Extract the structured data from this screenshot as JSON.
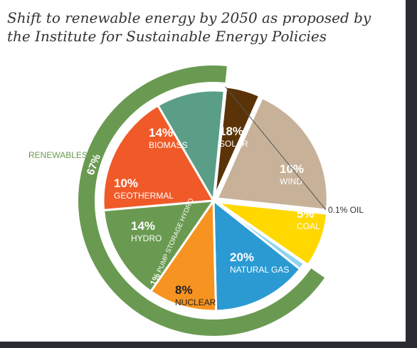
{
  "title": "Shift to renewable energy by 2050 as proposed by the Institute for Sustainable Energy Policies",
  "colors": {
    "frame": "#2b2b33",
    "renewables_ring": "#6a9a51",
    "renewables_label": "#6a9a51"
  },
  "chart_data": {
    "type": "pie",
    "title": "Shift to renewable energy by 2050 as proposed by the Institute for Sustainable Energy Policies",
    "slices": [
      {
        "label": "SOLAR",
        "percent": "18%",
        "value": 18,
        "color": "#f05a28",
        "group": "renewables"
      },
      {
        "label": "WIND",
        "percent": "10%",
        "value": 10,
        "color": "#5a9e87",
        "group": "renewables"
      },
      {
        "label": "OIL",
        "percent": "0.1%",
        "value": 0.1,
        "color": "#333333",
        "group": "other"
      },
      {
        "label": "COAL",
        "percent": "5%",
        "value": 5,
        "color": "#5a3408",
        "group": "other"
      },
      {
        "label": "NATURAL GAS",
        "percent": "20%",
        "value": 20,
        "color": "#c7b299",
        "group": "other"
      },
      {
        "label": "NUCLEAR",
        "percent": "8%",
        "value": 8,
        "color": "#ffd800",
        "group": "other"
      },
      {
        "label": "PUMP STORAGE HYDRO",
        "percent": "1%",
        "value": 1,
        "color": "#8fd3f2",
        "group": "renewables"
      },
      {
        "label": "HYDRO",
        "percent": "14%",
        "value": 14,
        "color": "#2b9ad3",
        "group": "renewables"
      },
      {
        "label": "GEOTHERMAL",
        "percent": "10%",
        "value": 10,
        "color": "#f79320",
        "group": "renewables"
      },
      {
        "label": "BIOMASS",
        "percent": "14%",
        "value": 14,
        "color": "#6a9a51",
        "group": "renewables"
      }
    ],
    "groups": [
      {
        "label": "RENEWABLES",
        "percent": "67%",
        "value": 67
      }
    ]
  }
}
